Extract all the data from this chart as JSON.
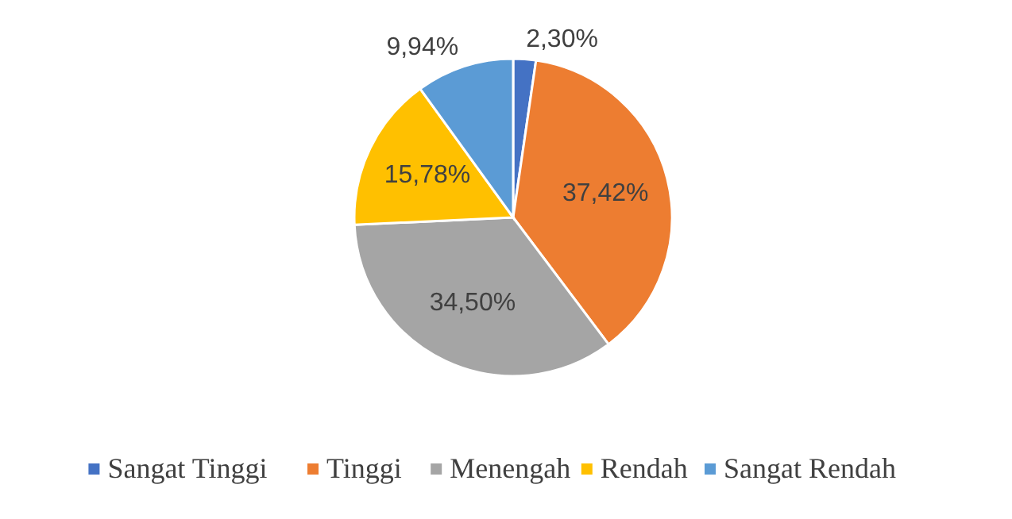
{
  "chart_data": {
    "type": "pie",
    "categories": [
      "Sangat Tinggi",
      "Tinggi",
      "Menengah",
      "Rendah",
      "Sangat Rendah"
    ],
    "values": [
      2.3,
      37.42,
      34.5,
      15.78,
      9.94
    ],
    "colors": [
      "#4472c4",
      "#ed7d31",
      "#a5a5a5",
      "#ffc000",
      "#5b9bd5"
    ],
    "value_labels": [
      "2,30%",
      "37,42%",
      "34,50%",
      "15,78%",
      "9,94%"
    ],
    "legend": "bottom"
  }
}
